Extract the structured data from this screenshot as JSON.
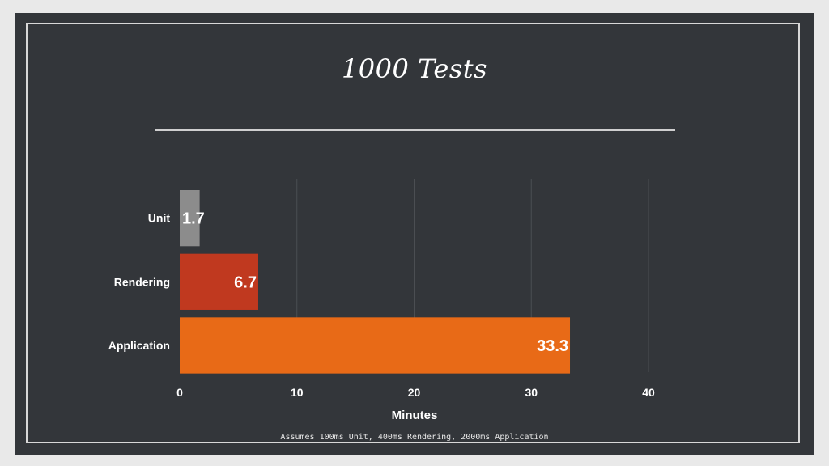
{
  "title": "1000 Tests",
  "footnote": "Assumes 100ms Unit, 400ms Rendering, 2000ms Application",
  "colors": {
    "background": "#33363a",
    "frame": "#d8d8d8",
    "grid": "#4b4e52",
    "text": "#ffffff"
  },
  "chart_data": {
    "type": "bar",
    "orientation": "horizontal",
    "categories": [
      "Unit",
      "Rendering",
      "Application"
    ],
    "values": [
      1.7,
      6.7,
      33.3
    ],
    "data_labels": [
      "1.7",
      "6.7",
      "33.3"
    ],
    "bar_colors": [
      "#8c8c8c",
      "#c0391f",
      "#e86a17"
    ],
    "xlabel": "Minutes",
    "ylabel": "",
    "xlim": [
      0,
      40
    ],
    "xticks": [
      0,
      10,
      20,
      30,
      40
    ],
    "grid": true
  }
}
